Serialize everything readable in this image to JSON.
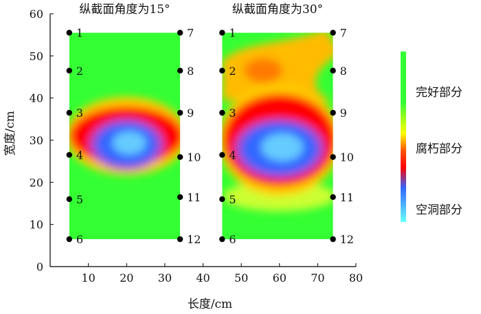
{
  "chart_data": {
    "type": "heatmap",
    "xlabel": "长度/cm",
    "ylabel": "宽度/cm",
    "xlim": [
      0,
      80
    ],
    "ylim": [
      0,
      60
    ],
    "xticks": [
      10,
      20,
      30,
      40,
      50,
      60,
      70,
      80
    ],
    "yticks": [
      0,
      10,
      20,
      30,
      40,
      50,
      60
    ],
    "grid": false,
    "colorscale": [
      "#33ff33",
      "#ffff00",
      "#ff0000",
      "#3366ff",
      "#66ffff"
    ],
    "legend": {
      "position": "right",
      "labels": [
        "完好部分",
        "腐朽部分",
        "空洞部分"
      ]
    },
    "panels": [
      {
        "title": "纵截面角度为15°",
        "x_range": [
          5,
          34
        ],
        "y_range": [
          6.5,
          55.5
        ],
        "left_points": [
          {
            "label": "1",
            "x": 5,
            "y": 55.5
          },
          {
            "label": "2",
            "x": 5,
            "y": 46.5
          },
          {
            "label": "3",
            "x": 5,
            "y": 36.5
          },
          {
            "label": "4",
            "x": 5,
            "y": 26.5
          },
          {
            "label": "5",
            "x": 5,
            "y": 16
          },
          {
            "label": "6",
            "x": 5,
            "y": 6.5
          }
        ],
        "right_points": [
          {
            "label": "7",
            "x": 34,
            "y": 55.5
          },
          {
            "label": "8",
            "x": 34,
            "y": 46.5
          },
          {
            "label": "9",
            "x": 34,
            "y": 36.5
          },
          {
            "label": "10",
            "x": 34,
            "y": 26
          },
          {
            "label": "11",
            "x": 34,
            "y": 16.5
          },
          {
            "label": "12",
            "x": 34,
            "y": 6.5
          }
        ],
        "hollow_center": {
          "x": 20,
          "y": 29
        },
        "hollow_radius": {
          "x": 8,
          "y": 5
        },
        "decay_extent_y": [
          24,
          38
        ]
      },
      {
        "title": "纵截面角度为30°",
        "x_range": [
          45,
          74
        ],
        "y_range": [
          6.5,
          55.5
        ],
        "left_points": [
          {
            "label": "1",
            "x": 45,
            "y": 55.5
          },
          {
            "label": "2",
            "x": 45,
            "y": 46.5
          },
          {
            "label": "3",
            "x": 45,
            "y": 36.5
          },
          {
            "label": "4",
            "x": 45,
            "y": 26.5
          },
          {
            "label": "5",
            "x": 45,
            "y": 16
          },
          {
            "label": "6",
            "x": 45,
            "y": 6.5
          }
        ],
        "right_points": [
          {
            "label": "7",
            "x": 74,
            "y": 55.5
          },
          {
            "label": "8",
            "x": 74,
            "y": 46.5
          },
          {
            "label": "9",
            "x": 74,
            "y": 36.5
          },
          {
            "label": "10",
            "x": 74,
            "y": 26
          },
          {
            "label": "11",
            "x": 74,
            "y": 16.5
          },
          {
            "label": "12",
            "x": 74,
            "y": 6.5
          }
        ],
        "hollow_center": {
          "x": 60,
          "y": 28
        },
        "hollow_radius": {
          "x": 10,
          "y": 6
        },
        "decay_extent_y": [
          19,
          41
        ]
      }
    ]
  }
}
